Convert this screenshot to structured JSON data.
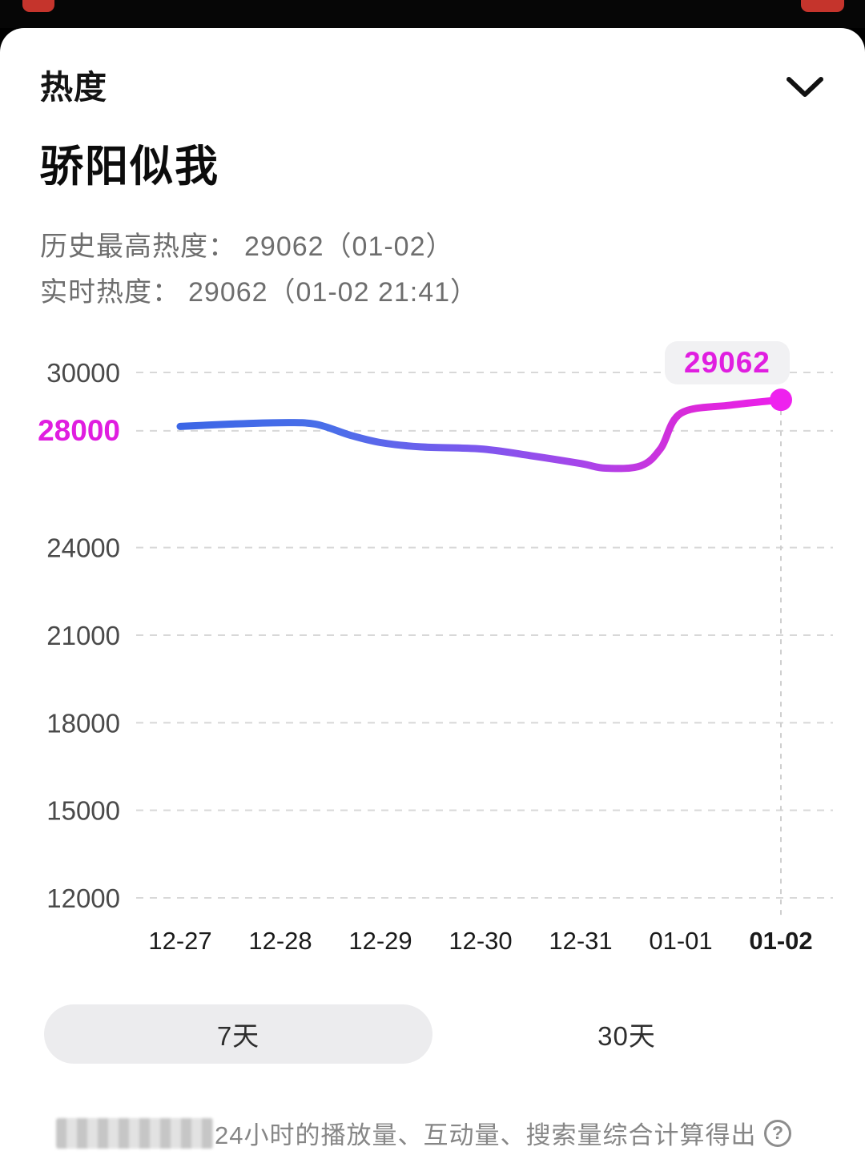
{
  "top_strip": {
    "bg": "#060606",
    "accent": "#c5342c"
  },
  "panel": {
    "section_title": "热度",
    "drama_title": "骄阳似我",
    "stats": [
      {
        "label": "历史最高热度：",
        "value": "29062（01-02）"
      },
      {
        "label": "实时热度：",
        "value": "29062（01-02 21:41）"
      }
    ]
  },
  "chart_data": {
    "type": "line",
    "categories": [
      "12-27",
      "12-28",
      "12-29",
      "12-30",
      "12-31",
      "01-01",
      "01-02"
    ],
    "values": [
      28150,
      28280,
      27600,
      27380,
      26800,
      28600,
      29062
    ],
    "curve_points": [
      [
        0,
        28150
      ],
      [
        0.5,
        28230
      ],
      [
        1,
        28280
      ],
      [
        1.35,
        28230
      ],
      [
        1.7,
        27850
      ],
      [
        2,
        27600
      ],
      [
        2.4,
        27450
      ],
      [
        3,
        27380
      ],
      [
        3.5,
        27150
      ],
      [
        4,
        26880
      ],
      [
        4.25,
        26720
      ],
      [
        4.6,
        26800
      ],
      [
        4.8,
        27400
      ],
      [
        5,
        28600
      ],
      [
        5.5,
        28880
      ],
      [
        6,
        29062
      ]
    ],
    "ylim": [
      12000,
      30800
    ],
    "yticks": [
      30000,
      28000,
      24000,
      21000,
      18000,
      15000,
      12000
    ],
    "highlight_tick": 28000,
    "selected_category": "01-02",
    "peak_label": "29062",
    "peak_value": 29062,
    "grid": "dashed-horizontal",
    "legend": "none",
    "colors": {
      "line_gradient": [
        {
          "offset": 0,
          "color": "#3c66e6"
        },
        {
          "offset": 0.25,
          "color": "#4a6fe9"
        },
        {
          "offset": 0.5,
          "color": "#7e57ee"
        },
        {
          "offset": 0.68,
          "color": "#aa44e9"
        },
        {
          "offset": 0.85,
          "color": "#da2ad9"
        },
        {
          "offset": 1,
          "color": "#ec1fec"
        }
      ],
      "highlight": "#e01ee0",
      "grid": "#d8d8d8",
      "tick": "#4a4a4a",
      "xtick": "#1a1a1a",
      "dot": "#ee22ee",
      "vline": "#cfcfcf"
    }
  },
  "tabs": {
    "items": [
      {
        "label": "7天",
        "active": true
      },
      {
        "label": "30天",
        "active": false
      }
    ]
  },
  "footer": {
    "visible_text": "24小时的播放量、互动量、搜索量综合计算得出",
    "help": "?"
  }
}
